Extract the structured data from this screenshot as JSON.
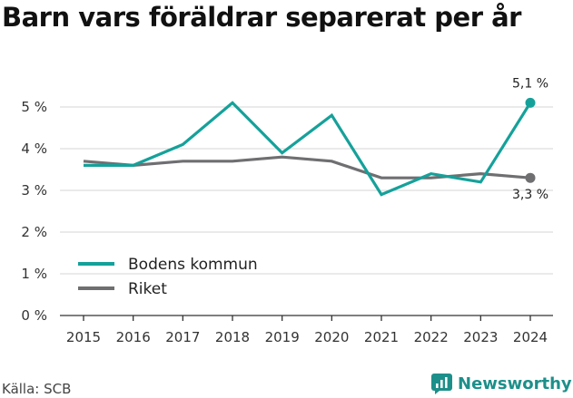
{
  "chart_data": {
    "type": "line",
    "title": "Barn vars föräldrar separerat per år",
    "xlabel": "",
    "ylabel": "",
    "x": [
      "2015",
      "2016",
      "2017",
      "2018",
      "2019",
      "2020",
      "2021",
      "2022",
      "2023",
      "2024"
    ],
    "ylim": [
      0,
      5
    ],
    "yticks": [
      0,
      1,
      2,
      3,
      4,
      5
    ],
    "ytick_labels": [
      "0 %",
      "1 %",
      "2 %",
      "3 %",
      "4 %",
      "5 %"
    ],
    "grid": true,
    "legend_position": "lower-left",
    "series": [
      {
        "name": "Bodens kommun",
        "color": "#15a19a",
        "values": [
          3.6,
          3.6,
          4.1,
          5.1,
          3.9,
          4.8,
          2.9,
          3.4,
          3.2,
          5.1
        ],
        "end_label": "5,1 %"
      },
      {
        "name": "Riket",
        "color": "#6f6f72",
        "values": [
          3.7,
          3.6,
          3.7,
          3.7,
          3.8,
          3.7,
          3.3,
          3.3,
          3.4,
          3.3
        ],
        "end_label": "3,3 %"
      }
    ]
  },
  "footer": {
    "source": "Källa: SCB",
    "brand": "Newsworthy",
    "brand_icon": "newsworthy-logo-icon"
  }
}
